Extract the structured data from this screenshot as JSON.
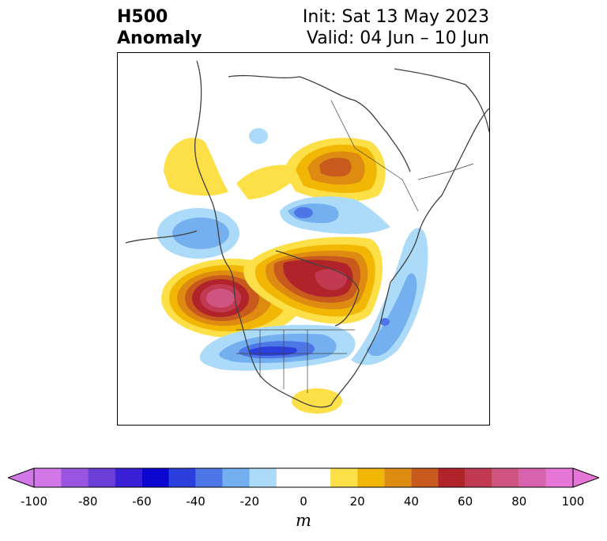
{
  "title": {
    "line1": "H500",
    "line2": "Anomaly",
    "init": "Init: Sat 13 May 2023",
    "valid": "Valid: 04 Jun – 10 Jun"
  },
  "colorbar": {
    "unit": "m",
    "min": -100,
    "max": 100,
    "tick_labels": [
      "-100",
      "-80",
      "-60",
      "-40",
      "-20",
      "0",
      "20",
      "40",
      "60",
      "80",
      "100"
    ],
    "bins": [
      {
        "from": -100,
        "to": -90,
        "color": "#d277e8"
      },
      {
        "from": -90,
        "to": -80,
        "color": "#9a55e0"
      },
      {
        "from": -80,
        "to": -70,
        "color": "#6b3fd8"
      },
      {
        "from": -70,
        "to": -60,
        "color": "#3a1fd4"
      },
      {
        "from": -60,
        "to": -50,
        "color": "#0a06d0"
      },
      {
        "from": -50,
        "to": -40,
        "color": "#2a3fdc"
      },
      {
        "from": -40,
        "to": -30,
        "color": "#4d77e6"
      },
      {
        "from": -30,
        "to": -20,
        "color": "#74aff0"
      },
      {
        "from": -20,
        "to": -10,
        "color": "#abdbf8"
      },
      {
        "from": -10,
        "to": 10,
        "color": "#ffffff"
      },
      {
        "from": 10,
        "to": 20,
        "color": "#fde047"
      },
      {
        "from": 20,
        "to": 30,
        "color": "#f2b705"
      },
      {
        "from": 30,
        "to": 40,
        "color": "#de8b12"
      },
      {
        "from": 40,
        "to": 50,
        "color": "#c75a1c"
      },
      {
        "from": 50,
        "to": 60,
        "color": "#b0232a"
      },
      {
        "from": 60,
        "to": 70,
        "color": "#c23a52"
      },
      {
        "from": 70,
        "to": 80,
        "color": "#ce5582"
      },
      {
        "from": 80,
        "to": 90,
        "color": "#d763ae"
      },
      {
        "from": 90,
        "to": 100,
        "color": "#e675d8"
      }
    ],
    "extend_low_color": "#d277e8",
    "extend_high_color": "#e675d8"
  },
  "map": {
    "projection": "north-polar-stereographic",
    "coastline_color": "#404040",
    "anomaly_features": [
      {
        "name": "ridge-pacific-west-coast",
        "peak": 70
      },
      {
        "name": "ridge-canada-central",
        "peak": 60
      },
      {
        "name": "ridge-alaska-gulf",
        "peak": 20
      },
      {
        "name": "ridge-siberia",
        "peak": 40
      },
      {
        "name": "ridge-gulf-mexico",
        "peak": 20
      },
      {
        "name": "trough-north-pacific",
        "peak": -30
      },
      {
        "name": "trough-us-midwest",
        "peak": -50
      },
      {
        "name": "trough-western-atlantic",
        "peak": -40
      },
      {
        "name": "trough-arctic",
        "peak": -30
      }
    ]
  }
}
